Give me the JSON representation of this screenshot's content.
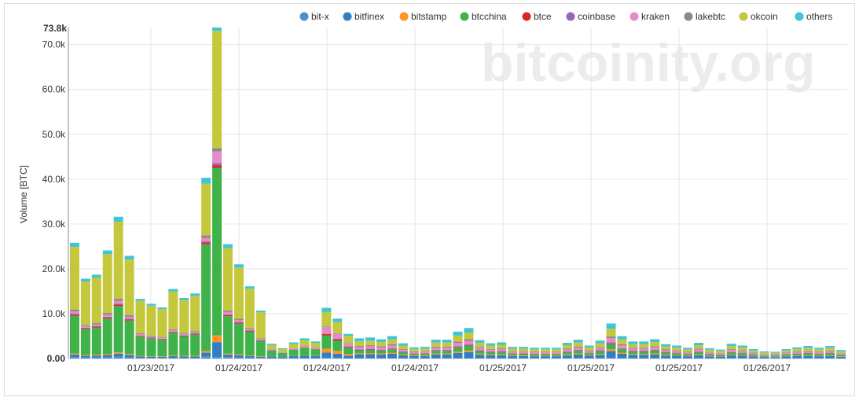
{
  "watermark": "bitcoinity.org",
  "chart_data": {
    "type": "bar",
    "stacked": true,
    "ylabel": "Volume [BTC]",
    "ylim": [
      0,
      73800
    ],
    "y_top_label": "73.8k",
    "y_ticks": [
      {
        "value": 0,
        "label": "0.00"
      },
      {
        "value": 10000,
        "label": "10.0k"
      },
      {
        "value": 20000,
        "label": "20.0k"
      },
      {
        "value": 30000,
        "label": "30.0k"
      },
      {
        "value": 40000,
        "label": "40.0k"
      },
      {
        "value": 50000,
        "label": "50.0k"
      },
      {
        "value": 60000,
        "label": "60.0k"
      },
      {
        "value": 70000,
        "label": "70.0k"
      }
    ],
    "x_tick_labels": [
      "01/23/2017",
      "01/24/2017",
      "01/24/2017",
      "01/24/2017",
      "01/25/2017",
      "01/25/2017",
      "01/25/2017",
      "01/26/2017"
    ],
    "legend_position": "top-right",
    "grid": true,
    "series": [
      {
        "name": "bit-x",
        "color": "#4e8fc7"
      },
      {
        "name": "bitfinex",
        "color": "#2f7fc1"
      },
      {
        "name": "bitstamp",
        "color": "#ff9324"
      },
      {
        "name": "btcchina",
        "color": "#3fb24a"
      },
      {
        "name": "btce",
        "color": "#d62728"
      },
      {
        "name": "coinbase",
        "color": "#9467bd"
      },
      {
        "name": "kraken",
        "color": "#e889c8"
      },
      {
        "name": "lakebtc",
        "color": "#8a8a8a"
      },
      {
        "name": "okcoin",
        "color": "#c5c83c"
      },
      {
        "name": "others",
        "color": "#3ec6d4"
      }
    ],
    "totals": [
      25800,
      17800,
      18700,
      24100,
      31600,
      22900,
      13300,
      12200,
      11400,
      15500,
      13500,
      14500,
      40300,
      73800,
      25500,
      21000,
      16100,
      10700,
      3300,
      2300,
      3600,
      4500,
      3800,
      11300,
      8900,
      5500,
      4500,
      4700,
      4300,
      5000,
      3400,
      2500,
      2600,
      4200,
      4200,
      6000,
      6800,
      4100,
      3400,
      3600,
      2600,
      2600,
      2400,
      2400,
      2400,
      3500,
      4200,
      2900,
      4000,
      7800,
      5000,
      3800,
      3800,
      4300,
      3200,
      2900,
      2400,
      3500,
      2300,
      2000,
      3300,
      2900,
      2100,
      1600,
      1500,
      2100,
      2500,
      2800,
      2400,
      2800,
      1900
    ]
  }
}
